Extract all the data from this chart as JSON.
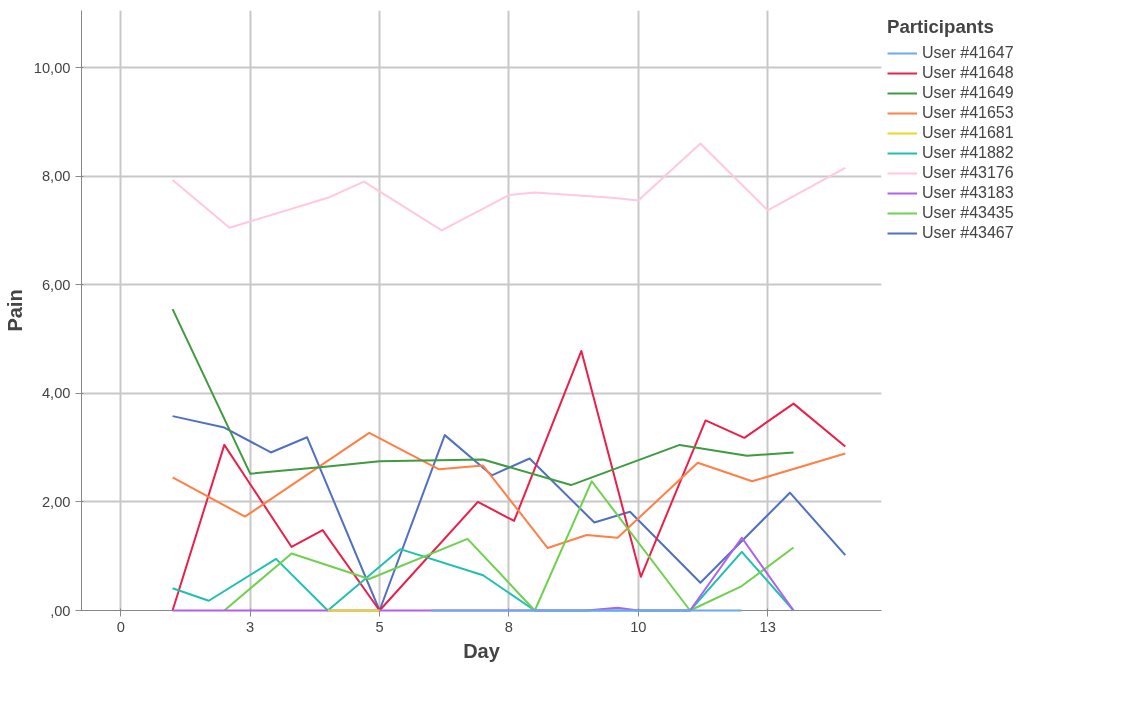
{
  "chart_data": {
    "type": "line",
    "xlabel": "Day",
    "ylabel": "Pain",
    "legend_title": "Participants",
    "legend": "right",
    "grid": true,
    "line_style": "solid",
    "xlim": [
      -0.76,
      14.7
    ],
    "xticks": [
      {
        "value": 0,
        "label": "0"
      },
      {
        "value": 2.5,
        "label": "3"
      },
      {
        "value": 5,
        "label": "5"
      },
      {
        "value": 7.5,
        "label": "8"
      },
      {
        "value": 10,
        "label": "10"
      },
      {
        "value": 12.5,
        "label": "13"
      }
    ],
    "ylim": [
      0,
      11.05
    ],
    "yticks": [
      {
        "value": 0,
        "label": ",00"
      },
      {
        "value": 2,
        "label": "2,00"
      },
      {
        "value": 4,
        "label": "4,00"
      },
      {
        "value": 6,
        "label": "6,00"
      },
      {
        "value": 8,
        "label": "8,00"
      },
      {
        "value": 10,
        "label": "10,00"
      }
    ],
    "series": [
      {
        "name": "User #41647",
        "color": "#6aa8f0",
        "x": [
          6,
          7,
          8,
          9,
          10,
          11,
          12
        ],
        "values": [
          0,
          0,
          0,
          0,
          0,
          0,
          0
        ]
      },
      {
        "name": "User #41648",
        "color": "#e8204a",
        "x": [
          1,
          2,
          3.3,
          3.9,
          5,
          6.9,
          7.6,
          8.9,
          10.05,
          11.3,
          12.05,
          13.0,
          14
        ],
        "values": [
          0,
          3.05,
          1.17,
          1.48,
          0,
          2.0,
          1.65,
          4.78,
          0.62,
          3.5,
          3.18,
          3.81,
          3.02
        ]
      },
      {
        "name": "User #41649",
        "color": "#3f9b3f",
        "x": [
          1,
          2.5,
          4,
          5,
          7,
          8.7,
          10.8,
          12.1,
          13
        ],
        "values": [
          5.55,
          2.52,
          2.65,
          2.75,
          2.78,
          2.31,
          3.05,
          2.85,
          2.91
        ]
      },
      {
        "name": "User #41653",
        "color": "#ff7f45",
        "x": [
          1,
          2.4,
          4.8,
          6.15,
          7.0,
          8.25,
          9.0,
          9.6,
          11.15,
          12.2,
          14
        ],
        "values": [
          2.45,
          1.73,
          3.27,
          2.6,
          2.67,
          1.15,
          1.39,
          1.34,
          2.72,
          2.38,
          2.89
        ]
      },
      {
        "name": "User #41681",
        "color": "#e8d820",
        "x": [
          4,
          5
        ],
        "values": [
          0,
          0
        ]
      },
      {
        "name": "User #41882",
        "color": "#20c0b0",
        "x": [
          1,
          1.7,
          3,
          4,
          5.4,
          7,
          8,
          9,
          10,
          11,
          12,
          13
        ],
        "values": [
          0.41,
          0.18,
          0.95,
          0,
          1.13,
          0.65,
          0,
          0,
          0,
          0,
          1.08,
          0
        ]
      },
      {
        "name": "User #43176",
        "color": "#ffc8e0",
        "x": [
          1,
          2.1,
          4,
          4.7,
          6.2,
          7.5,
          8,
          9.5,
          10,
          11.2,
          12.5,
          14
        ],
        "values": [
          7.93,
          7.05,
          7.6,
          7.9,
          7.0,
          7.65,
          7.7,
          7.6,
          7.55,
          8.6,
          7.37,
          8.15
        ]
      },
      {
        "name": "User #43183",
        "color": "#b060f0",
        "x": [
          1,
          5,
          9,
          9.6,
          10,
          11,
          12,
          13
        ],
        "values": [
          0,
          0,
          0,
          0.05,
          0,
          0,
          1.34,
          0
        ]
      },
      {
        "name": "User #43435",
        "color": "#70d050",
        "x": [
          2,
          3.3,
          4.8,
          6.7,
          8,
          9.1,
          11,
          12,
          13
        ],
        "values": [
          0,
          1.05,
          0.58,
          1.32,
          0,
          2.38,
          0,
          0.45,
          1.16
        ]
      },
      {
        "name": "User #43467",
        "color": "#5070c0",
        "x": [
          1,
          2,
          2.9,
          3.6,
          5,
          6.26,
          7.17,
          7.9,
          9.15,
          9.84,
          11.2,
          12.93,
          14
        ],
        "values": [
          3.58,
          3.37,
          2.91,
          3.19,
          0,
          3.23,
          2.49,
          2.8,
          1.62,
          1.82,
          0.51,
          2.17,
          1.02
        ]
      }
    ]
  }
}
